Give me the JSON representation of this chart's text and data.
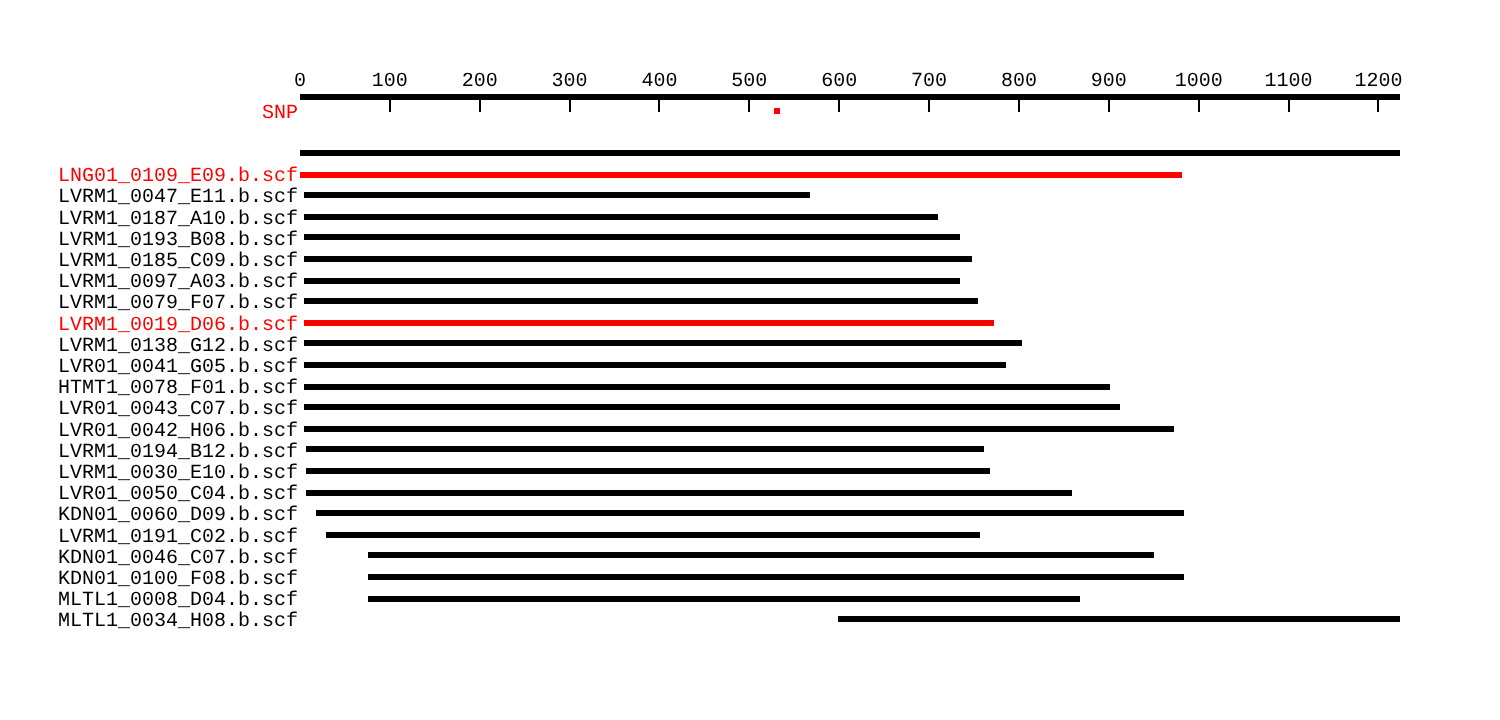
{
  "chart_data": {
    "type": "bar",
    "orientation": "horizontal",
    "categories": [
      "SNP",
      null,
      null,
      "LNG01_0109_E09.b.scf",
      "LVRM1_0047_E11.b.scf",
      "LVRM1_0187_A10.b.scf",
      "LVRM1_0193_B08.b.scf",
      "LVRM1_0185_C09.b.scf",
      "LVRM1_0097_A03.b.scf",
      "LVRM1_0079_F07.b.scf",
      "LVRM1_0019_D06.b.scf",
      "LVRM1_0138_G12.b.scf",
      "LVR01_0041_G05.b.scf",
      "HTMT1_0078_F01.b.scf",
      "LVR01_0043_C07.b.scf",
      "LVR01_0042_H06.b.scf",
      "LVRM1_0194_B12.b.scf",
      "LVRM1_0030_E10.b.scf",
      "LVR01_0050_C04.b.scf",
      "KDN01_0060_D09.b.scf",
      "LVRM1_0191_C02.b.scf",
      "KDN01_0046_C07.b.scf",
      "KDN01_0100_F08.b.scf",
      "MLTL1_0008_D04.b.scf",
      "MLTL1_0034_H08.b.scf"
    ],
    "base": [
      529,
      null,
      0,
      0,
      4,
      4,
      4,
      4,
      4,
      4,
      4,
      4,
      4,
      4,
      4,
      4,
      6,
      6,
      6,
      17,
      29,
      75,
      75,
      75,
      598
    ],
    "values": [
      4,
      null,
      1224,
      982,
      564,
      706,
      731,
      744,
      731,
      751,
      769,
      800,
      782,
      898,
      909,
      969,
      755,
      762,
      853,
      967,
      728,
      876,
      909,
      793,
      626
    ],
    "colors": [
      "#ff0000",
      "#000000",
      "#000000",
      "#ff0000",
      "#000000",
      "#000000",
      "#000000",
      "#000000",
      "#000000",
      "#000000",
      "#ff0000",
      "#000000",
      "#000000",
      "#000000",
      "#000000",
      "#000000",
      "#000000",
      "#000000",
      "#000000",
      "#000000",
      "#000000",
      "#000000",
      "#000000",
      "#000000",
      "#000000"
    ],
    "xlim": [
      0,
      1224
    ],
    "xticks": [
      0,
      100,
      200,
      300,
      400,
      500,
      600,
      700,
      800,
      900,
      1000,
      1100,
      1200
    ],
    "grid": false,
    "legend": false
  }
}
